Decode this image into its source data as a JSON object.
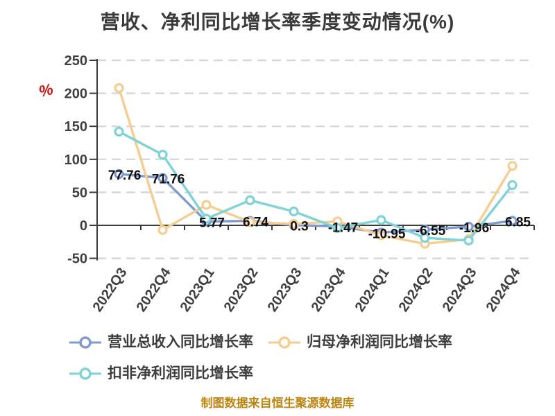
{
  "title": "营收、净利同比增长率季度变动情况(%)",
  "y_axis_unit": "%",
  "footer": "制图数据来自恒生聚源数据库",
  "colors": {
    "revenue_series": "#7e9bd0",
    "net_profit_series": "#f6cd90",
    "deducted_profit_series": "#7fd3d6",
    "grid": "#d8d8d8",
    "axis": "#3c3c3c",
    "tick_label": "#3f3f3f",
    "data_label": "#101010",
    "unit_label": "#cc1111",
    "footer_text": "#bd8412"
  },
  "chart_data": {
    "type": "line",
    "categories": [
      "2022Q3",
      "2022Q4",
      "2023Q1",
      "2023Q2",
      "2023Q3",
      "2023Q4",
      "2024Q1",
      "2024Q2",
      "2024Q3",
      "2024Q4"
    ],
    "series": [
      {
        "name": "营业总收入同比增长率",
        "color": "#7e9bd0",
        "values": [
          77.76,
          71.76,
          5.77,
          6.74,
          0.3,
          -1.47,
          -10.95,
          -6.55,
          -1.96,
          6.85
        ],
        "point_labels": [
          "77.76",
          "71.76",
          "5.77",
          "6.74",
          "0.3",
          "-1.47",
          "-10.95",
          "-6.55",
          "-1.96",
          "6.85"
        ]
      },
      {
        "name": "归母净利润同比增长率",
        "color": "#f6cd90",
        "values": [
          208,
          -7,
          31,
          5,
          2,
          6,
          -15,
          -28,
          -21,
          90
        ]
      },
      {
        "name": "扣非净利润同比增长率",
        "color": "#7fd3d6",
        "values": [
          142,
          107,
          10,
          38,
          21,
          -4,
          8,
          -19,
          -23,
          61
        ]
      }
    ],
    "ylim": [
      -50,
      250
    ],
    "y_ticks": [
      250,
      200,
      150,
      100,
      50,
      0,
      -50
    ],
    "grid": "horizontal dashed",
    "legend_position": "bottom-left",
    "x_label_rotation_deg": -56
  }
}
